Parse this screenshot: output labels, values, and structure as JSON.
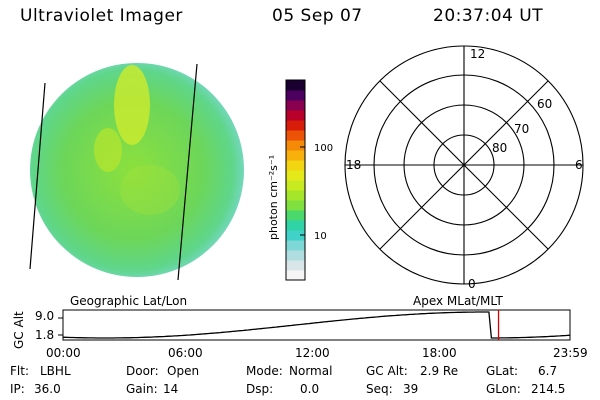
{
  "header": {
    "instrument": "Ultraviolet Imager",
    "date": "05 Sep 07",
    "time": "20:37:04 UT"
  },
  "colorbar": {
    "label": "photon cm⁻²s⁻¹",
    "ticks": [
      "100",
      "10"
    ],
    "colors": [
      "#f5f5f5",
      "#d8e6ea",
      "#b0dde0",
      "#7fd8d8",
      "#40d2c8",
      "#2fd3a6",
      "#4ad86c",
      "#7fe040",
      "#a6e62a",
      "#c8ea20",
      "#e5e91a",
      "#f3d512",
      "#f7b00c",
      "#f58a08",
      "#ec5306",
      "#d81c0a",
      "#b8002a",
      "#8a0050",
      "#4c0060",
      "#1a0030"
    ]
  },
  "polar": {
    "hour_labels": [
      "12",
      "18",
      "6",
      "0"
    ],
    "lat_labels": [
      "60",
      "70",
      "80"
    ]
  },
  "labels": {
    "left_caption": "Geographic Lat/Lon",
    "right_caption": "Apex MLat/MLT"
  },
  "alt_plot": {
    "axis_label": "GC Alt",
    "ymax": "9.0",
    "ymin": "1.8",
    "x_ticks": [
      "00:00",
      "06:00",
      "12:00",
      "18:00",
      "23:59"
    ],
    "marker_time": "20:37"
  },
  "info": {
    "flt_label": "Flt:",
    "flt_value": "LBHL",
    "ip_label": "IP:",
    "ip_value": "36.0",
    "door_label": "Door:",
    "door_value": "Open",
    "gain_label": "Gain:",
    "gain_value": "14",
    "mode_label": "Mode:",
    "mode_value": "Normal",
    "dsp_label": "Dsp:",
    "dsp_value": "0.0",
    "gcalt_label": "GC Alt:",
    "gcalt_value": "2.9 Re",
    "seq_label": "Seq:",
    "seq_value": "39",
    "glat_label": "GLat:",
    "glat_value": "6.7",
    "glon_label": "GLon:",
    "glon_value": "214.5"
  }
}
